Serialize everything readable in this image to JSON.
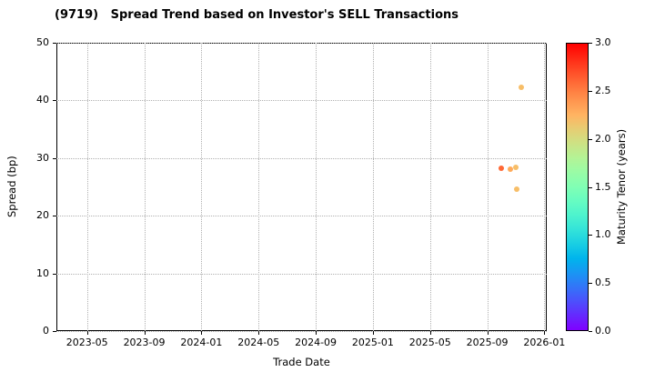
{
  "chart_data": {
    "type": "scatter",
    "title": "(9719)   Spread Trend based on Investor's SELL Transactions",
    "xlabel": "Trade Date",
    "ylabel": "Spread (bp)",
    "xlim": [
      "2023-02-27",
      "2026-01-06"
    ],
    "ylim": [
      0,
      50
    ],
    "yticks": [
      0,
      10,
      20,
      30,
      40,
      50
    ],
    "xticks": [
      "2023-05",
      "2023-09",
      "2024-01",
      "2024-05",
      "2024-09",
      "2025-01",
      "2025-05",
      "2025-09",
      "2026-01"
    ],
    "grid": true,
    "grid_style": "dotted",
    "grid_color": "#b0b0b0",
    "points": [
      {
        "date": "2025-10-01",
        "spread": 28.2,
        "tenor": 2.6
      },
      {
        "date": "2025-10-20",
        "spread": 28.1,
        "tenor": 2.3
      },
      {
        "date": "2025-11-01",
        "spread": 28.4,
        "tenor": 2.2
      },
      {
        "date": "2025-11-13",
        "spread": 42.3,
        "tenor": 2.2
      },
      {
        "date": "2025-11-03",
        "spread": 24.6,
        "tenor": 2.2
      }
    ],
    "colorbar": {
      "label": "Maturity Tenor (years)",
      "min": 0,
      "max": 3,
      "ticks": [
        "0.0",
        "0.5",
        "1.0",
        "1.5",
        "2.0",
        "2.5",
        "3.0"
      ],
      "colormap": "rainbow"
    }
  }
}
